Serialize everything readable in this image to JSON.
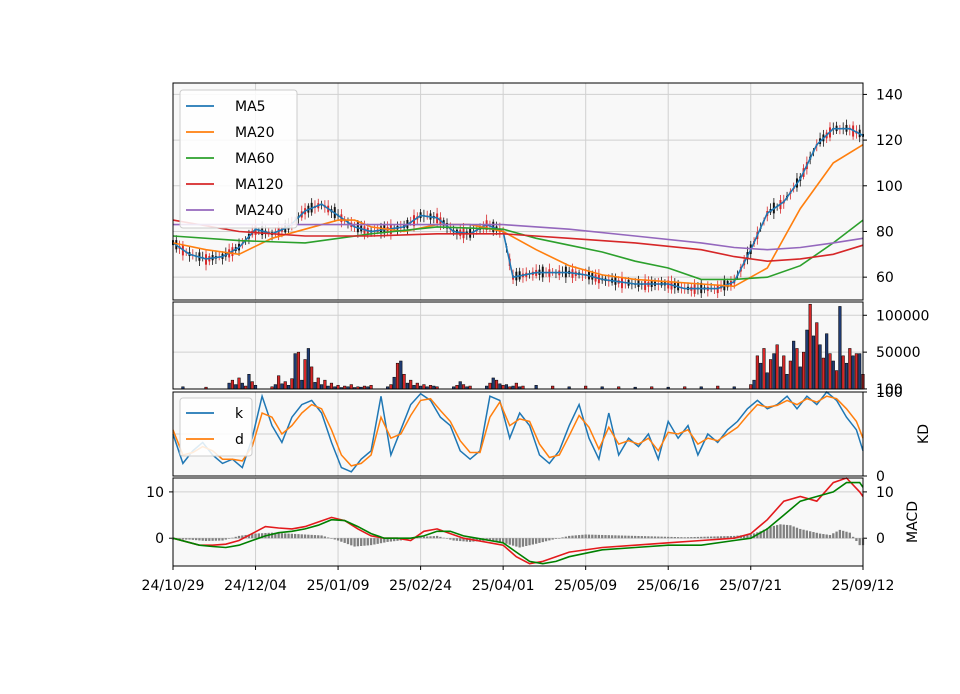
{
  "chart_data": [
    {
      "type": "line",
      "panel": "price",
      "note": "candlestick price panel with moving averages; y-axis on right",
      "ylim": [
        50,
        145
      ],
      "yticks": [
        60,
        80,
        100,
        120,
        140
      ],
      "grid": true,
      "legend_placement": "top-left",
      "x_ticks": [
        "24/10/29",
        "24/12/04",
        "25/01/09",
        "25/02/24",
        "25/04/01",
        "25/05/09",
        "25/06/16",
        "25/07/21",
        "25/09/12"
      ],
      "x_tick_index": [
        0,
        25,
        50,
        75,
        100,
        125,
        150,
        175,
        209
      ],
      "n_bars": 210,
      "series": [
        {
          "name": "MA5",
          "color": "#1f77b4",
          "x": [
            0,
            5,
            10,
            15,
            20,
            25,
            30,
            35,
            40,
            45,
            50,
            55,
            60,
            65,
            70,
            75,
            80,
            85,
            90,
            95,
            100,
            103,
            110,
            115,
            120,
            125,
            130,
            135,
            140,
            145,
            150,
            155,
            160,
            165,
            170,
            175,
            180,
            185,
            190,
            195,
            200,
            205,
            209
          ],
          "y": [
            75,
            70,
            68,
            69,
            73,
            81,
            79,
            82,
            89,
            92,
            87,
            82,
            80,
            81,
            82,
            87,
            86,
            80,
            79,
            83,
            80,
            60,
            62,
            62,
            62,
            61,
            59,
            58,
            57,
            57,
            57,
            55,
            55,
            55,
            58,
            72,
            88,
            93,
            103,
            118,
            125,
            125,
            122
          ]
        },
        {
          "name": "MA20",
          "color": "#ff7f0e",
          "x": [
            0,
            10,
            20,
            30,
            40,
            50,
            55,
            60,
            70,
            80,
            90,
            100,
            110,
            120,
            130,
            140,
            150,
            160,
            170,
            180,
            190,
            200,
            209
          ],
          "y": [
            75,
            72,
            70,
            77,
            81,
            85,
            85,
            82,
            80,
            83,
            83,
            80,
            72,
            65,
            61,
            59,
            58,
            57,
            56,
            64,
            90,
            110,
            118
          ]
        },
        {
          "name": "MA60",
          "color": "#2ca02c",
          "x": [
            0,
            20,
            40,
            60,
            80,
            100,
            110,
            120,
            130,
            140,
            150,
            160,
            170,
            180,
            190,
            200,
            209
          ],
          "y": [
            78,
            76,
            75,
            79,
            82,
            81,
            77,
            74,
            71,
            67,
            64,
            59,
            59,
            60,
            65,
            75,
            85
          ]
        },
        {
          "name": "MA120",
          "color": "#d62728",
          "x": [
            0,
            20,
            40,
            60,
            80,
            100,
            120,
            140,
            160,
            170,
            180,
            190,
            200,
            209
          ],
          "y": [
            85,
            80,
            78,
            78,
            79,
            79,
            77,
            75,
            72,
            69,
            67,
            68,
            70,
            74
          ]
        },
        {
          "name": "MA240",
          "color": "#9467bd",
          "x": [
            0,
            20,
            40,
            60,
            80,
            100,
            120,
            140,
            160,
            170,
            180,
            190,
            200,
            209
          ],
          "y": [
            83,
            83,
            83,
            83,
            83,
            83,
            81,
            78,
            75,
            73,
            72,
            73,
            75,
            77
          ]
        }
      ]
    },
    {
      "type": "bar",
      "panel": "volume",
      "ylim": [
        0,
        118000
      ],
      "yticks": [
        100,
        50000,
        100000
      ],
      "ytick_labels": [
        "100",
        "50000",
        "100000"
      ],
      "grid": true,
      "series": [
        {
          "name": "",
          "colors": [
            "#1f3b73",
            "#d62728"
          ],
          "x": [
            3,
            10,
            17,
            18,
            19,
            20,
            21,
            22,
            23,
            24,
            25,
            30,
            31,
            32,
            33,
            34,
            35,
            36,
            37,
            38,
            39,
            40,
            41,
            42,
            43,
            44,
            45,
            46,
            47,
            48,
            49,
            50,
            51,
            52,
            53,
            54,
            55,
            56,
            57,
            58,
            59,
            60,
            65,
            66,
            67,
            68,
            69,
            70,
            71,
            72,
            73,
            74,
            75,
            76,
            77,
            78,
            79,
            80,
            85,
            86,
            87,
            88,
            89,
            90,
            95,
            96,
            97,
            98,
            99,
            100,
            101,
            102,
            103,
            104,
            105,
            106,
            110,
            115,
            120,
            125,
            130,
            135,
            140,
            145,
            150,
            155,
            160,
            165,
            170,
            175,
            176,
            177,
            178,
            179,
            180,
            181,
            182,
            183,
            184,
            185,
            186,
            187,
            188,
            189,
            190,
            191,
            192,
            193,
            194,
            195,
            196,
            197,
            198,
            199,
            200,
            201,
            202,
            203,
            204,
            205,
            206,
            207,
            208,
            209
          ],
          "values": [
            3000,
            2500,
            8000,
            12000,
            6000,
            15000,
            8000,
            4000,
            20000,
            10000,
            5000,
            3000,
            6000,
            18000,
            7000,
            10000,
            5000,
            14000,
            48000,
            50000,
            12000,
            40000,
            55000,
            30000,
            9000,
            15000,
            6000,
            12000,
            4000,
            8000,
            3000,
            5000,
            2000,
            4000,
            3000,
            6000,
            2000,
            3000,
            2500,
            4000,
            3000,
            5000,
            3000,
            6000,
            16000,
            35000,
            38000,
            20000,
            8000,
            12000,
            5000,
            8000,
            4000,
            6000,
            3000,
            5000,
            4000,
            3000,
            3000,
            5000,
            10000,
            6000,
            3000,
            4000,
            4000,
            8000,
            15000,
            12000,
            7000,
            5000,
            6000,
            3000,
            4000,
            8000,
            3000,
            4000,
            5000,
            4000,
            3000,
            4000,
            3000,
            3000,
            2500,
            3000,
            2500,
            3000,
            3000,
            4000,
            3000,
            6000,
            12000,
            45000,
            35000,
            55000,
            22000,
            40000,
            48000,
            60000,
            30000,
            45000,
            20000,
            38000,
            65000,
            55000,
            30000,
            50000,
            80000,
            115000,
            72000,
            90000,
            60000,
            42000,
            75000,
            48000,
            38000,
            25000,
            112000,
            45000,
            35000,
            55000,
            45000,
            48000,
            48000,
            20000
          ]
        }
      ]
    },
    {
      "type": "line",
      "panel": "KD",
      "ylabel": "KD",
      "ylim": [
        0,
        100
      ],
      "yticks": [
        0,
        100
      ],
      "grid": true,
      "legend_placement": "top-left",
      "series": [
        {
          "name": "k",
          "color": "#1f77b4",
          "x": [
            0,
            3,
            6,
            9,
            12,
            15,
            18,
            21,
            24,
            27,
            30,
            33,
            36,
            39,
            42,
            45,
            48,
            51,
            54,
            57,
            60,
            63,
            66,
            69,
            72,
            75,
            78,
            81,
            84,
            87,
            90,
            93,
            96,
            99,
            102,
            105,
            108,
            111,
            114,
            117,
            120,
            123,
            126,
            129,
            132,
            135,
            138,
            141,
            144,
            147,
            150,
            153,
            156,
            159,
            162,
            165,
            168,
            171,
            174,
            177,
            180,
            183,
            186,
            189,
            192,
            195,
            198,
            201,
            204,
            207,
            209
          ],
          "y": [
            50,
            15,
            30,
            40,
            25,
            15,
            20,
            10,
            45,
            95,
            60,
            40,
            70,
            85,
            90,
            75,
            40,
            10,
            5,
            20,
            30,
            95,
            25,
            55,
            85,
            98,
            90,
            70,
            60,
            30,
            20,
            30,
            95,
            90,
            45,
            75,
            60,
            25,
            15,
            30,
            60,
            85,
            45,
            20,
            75,
            25,
            45,
            35,
            50,
            20,
            65,
            45,
            60,
            25,
            50,
            40,
            55,
            65,
            80,
            90,
            80,
            85,
            95,
            80,
            95,
            85,
            100,
            90,
            70,
            55,
            30
          ]
        },
        {
          "name": "d",
          "color": "#ff7f0e",
          "x": [
            0,
            3,
            6,
            9,
            12,
            15,
            18,
            21,
            24,
            27,
            30,
            33,
            36,
            39,
            42,
            45,
            48,
            51,
            54,
            57,
            60,
            63,
            66,
            69,
            72,
            75,
            78,
            81,
            84,
            87,
            90,
            93,
            96,
            99,
            102,
            105,
            108,
            111,
            114,
            117,
            120,
            123,
            126,
            129,
            132,
            135,
            138,
            141,
            144,
            147,
            150,
            153,
            156,
            159,
            162,
            165,
            168,
            171,
            174,
            177,
            180,
            183,
            186,
            189,
            192,
            195,
            198,
            201,
            204,
            207,
            209
          ],
          "y": [
            55,
            25,
            28,
            35,
            30,
            20,
            20,
            18,
            35,
            75,
            70,
            50,
            60,
            75,
            85,
            80,
            55,
            25,
            12,
            15,
            25,
            70,
            45,
            50,
            72,
            90,
            92,
            78,
            65,
            42,
            28,
            28,
            70,
            88,
            60,
            68,
            65,
            38,
            22,
            25,
            48,
            72,
            58,
            32,
            58,
            38,
            42,
            38,
            45,
            30,
            52,
            50,
            55,
            38,
            45,
            42,
            50,
            58,
            72,
            85,
            82,
            84,
            90,
            85,
            92,
            88,
            95,
            92,
            80,
            65,
            45
          ]
        }
      ]
    },
    {
      "type": "line",
      "panel": "MACD",
      "ylabel": "MACD",
      "ylim": [
        -6,
        13
      ],
      "yticks": [
        0,
        10
      ],
      "grid": true,
      "series": [
        {
          "name": "",
          "color": "#e31a1c",
          "x": [
            0,
            8,
            12,
            16,
            20,
            24,
            28,
            32,
            36,
            40,
            44,
            48,
            52,
            56,
            60,
            64,
            68,
            72,
            76,
            80,
            84,
            88,
            92,
            96,
            100,
            104,
            108,
            112,
            116,
            120,
            130,
            140,
            150,
            160,
            170,
            175,
            180,
            185,
            190,
            195,
            200,
            204,
            208,
            209
          ],
          "y": [
            0,
            -1.5,
            -1.5,
            -1.3,
            -0.5,
            1,
            2.5,
            2.2,
            2,
            2.5,
            3.5,
            4.5,
            3.8,
            2,
            0.5,
            0,
            0,
            -0.5,
            1.5,
            2,
            1,
            0,
            -0.5,
            -1,
            -1.5,
            -4,
            -5.5,
            -5,
            -4,
            -3,
            -2,
            -1.5,
            -1,
            -0.5,
            0,
            1,
            4,
            8,
            9,
            8,
            12,
            13,
            10,
            9
          ]
        },
        {
          "name": "",
          "color": "#008000",
          "x": [
            0,
            8,
            12,
            16,
            20,
            24,
            28,
            32,
            36,
            40,
            44,
            48,
            52,
            56,
            60,
            64,
            68,
            72,
            76,
            80,
            84,
            88,
            92,
            96,
            100,
            104,
            108,
            112,
            116,
            120,
            130,
            140,
            150,
            160,
            170,
            175,
            180,
            185,
            190,
            195,
            200,
            204,
            208,
            209
          ],
          "y": [
            0,
            -1.5,
            -1.8,
            -2,
            -1.5,
            -0.5,
            0.5,
            1.2,
            1.5,
            2,
            2.8,
            4,
            3.8,
            2.5,
            1,
            0,
            0,
            0,
            0.5,
            1.5,
            1.5,
            0.5,
            0,
            -0.5,
            -1,
            -3,
            -5,
            -5.5,
            -5,
            -4,
            -2.5,
            -2,
            -1.5,
            -1.5,
            -0.5,
            0,
            2,
            5,
            8,
            9,
            10,
            12,
            12,
            11
          ]
        }
      ],
      "histogram": {
        "color": "#808080",
        "x": [
          5,
          10,
          15,
          20,
          25,
          30,
          35,
          40,
          45,
          50,
          55,
          60,
          65,
          70,
          75,
          80,
          85,
          90,
          95,
          100,
          105,
          110,
          115,
          120,
          125,
          130,
          135,
          140,
          145,
          150,
          155,
          160,
          165,
          170,
          175,
          178,
          181,
          184,
          187,
          190,
          193,
          196,
          199,
          202,
          205,
          208
        ],
        "values": [
          -0.3,
          -0.6,
          -0.5,
          0.5,
          1,
          1.2,
          1,
          0.8,
          0.6,
          -0.5,
          -1.8,
          -1.5,
          -0.8,
          -0.4,
          0.3,
          0.5,
          -0.5,
          -0.8,
          -0.5,
          -1,
          -2,
          -1.2,
          -0.3,
          0.5,
          0.8,
          0.7,
          0.6,
          0.5,
          0.4,
          0.3,
          0.2,
          0.3,
          0.4,
          0.5,
          0.8,
          1.5,
          2.5,
          3,
          2.8,
          2,
          1.5,
          1,
          0.7,
          1.8,
          1.2,
          -1.5
        ]
      }
    }
  ]
}
